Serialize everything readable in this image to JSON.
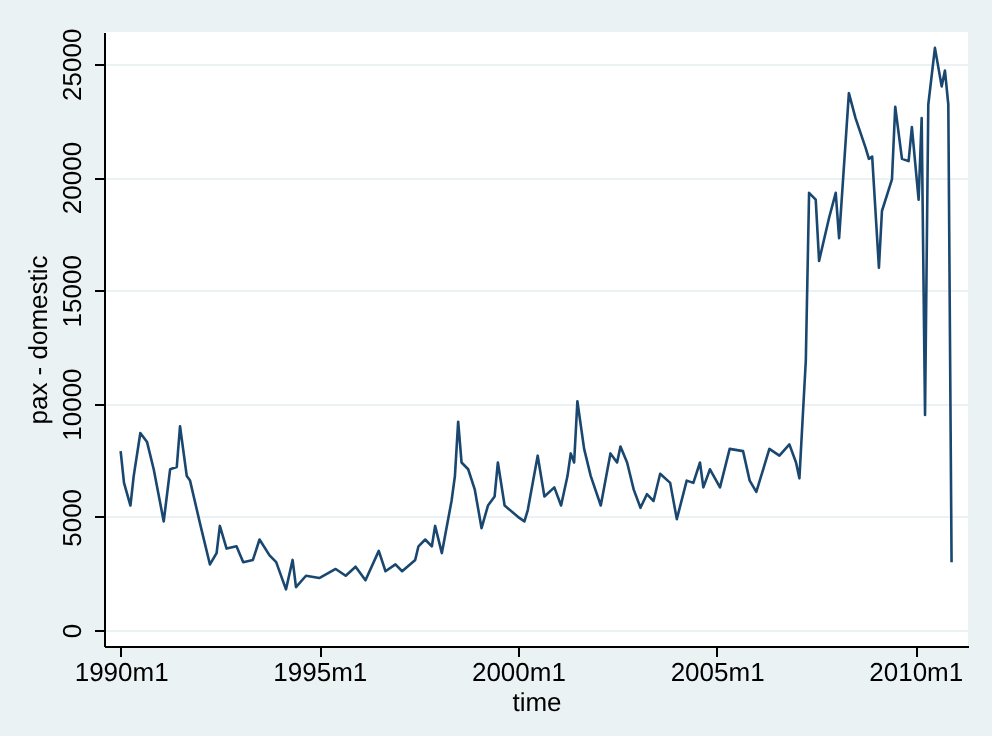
{
  "chart_data": {
    "type": "line",
    "xlabel": "time",
    "ylabel": "pax - domestic",
    "grid": "y",
    "xlim": [
      "1989-08",
      "2011-05"
    ],
    "ylim": [
      -700,
      26400
    ],
    "xticks": [
      {
        "value": "1990-01",
        "label": "1990m1"
      },
      {
        "value": "1995-01",
        "label": "1995m1"
      },
      {
        "value": "2000-01",
        "label": "2000m1"
      },
      {
        "value": "2005-01",
        "label": "2005m1"
      },
      {
        "value": "2010-01",
        "label": "2010m1"
      }
    ],
    "yticks": [
      0,
      5000,
      10000,
      15000,
      20000,
      25000
    ],
    "x": [
      "1990-01",
      "1990-02",
      "1990-04",
      "1990-05",
      "1990-07",
      "1990-09",
      "1990-11",
      "1991-02",
      "1991-04",
      "1991-06",
      "1991-07",
      "1991-09",
      "1991-10",
      "1992-01",
      "1992-04",
      "1992-06",
      "1992-07",
      "1992-09",
      "1992-12",
      "1993-02",
      "1993-05",
      "1993-07",
      "1993-10",
      "1993-12",
      "1994-03",
      "1994-05",
      "1994-06",
      "1994-09",
      "1995-01",
      "1995-06",
      "1995-09",
      "1995-12",
      "1996-03",
      "1996-07",
      "1996-09",
      "1996-12",
      "1997-02",
      "1997-06",
      "1997-07",
      "1997-09",
      "1997-11",
      "1997-12",
      "1998-02",
      "1998-05",
      "1998-06",
      "1998-07",
      "1998-08",
      "1998-10",
      "1998-12",
      "1999-02",
      "1999-04",
      "1999-06",
      "1999-07",
      "1999-09",
      "2000-01",
      "2000-03",
      "2000-04",
      "2000-07",
      "2000-09",
      "2000-12",
      "2001-02",
      "2001-04",
      "2001-05",
      "2001-06",
      "2001-07",
      "2001-09",
      "2001-11",
      "2002-02",
      "2002-05",
      "2002-07",
      "2002-08",
      "2002-10",
      "2002-12",
      "2003-02",
      "2003-04",
      "2003-06",
      "2003-08",
      "2003-11",
      "2004-01",
      "2004-04",
      "2004-06",
      "2004-08",
      "2004-09",
      "2004-11",
      "2005-02",
      "2005-05",
      "2005-09",
      "2005-11",
      "2006-01",
      "2006-05",
      "2006-08",
      "2006-11",
      "2007-01",
      "2007-02",
      "2007-04",
      "2007-05",
      "2007-07",
      "2007-08",
      "2007-11",
      "2008-01",
      "2008-02",
      "2008-05",
      "2008-07",
      "2008-10",
      "2008-11",
      "2008-12",
      "2009-02",
      "2009-03",
      "2009-06",
      "2009-07",
      "2009-09",
      "2009-11",
      "2009-12",
      "2010-02",
      "2010-03",
      "2010-04",
      "2010-05",
      "2010-07",
      "2010-09",
      "2010-10",
      "2010-11",
      "2010-12"
    ],
    "series": [
      {
        "color": "#1a476f",
        "values": [
          7900,
          6500,
          5500,
          6800,
          8700,
          8300,
          7100,
          4800,
          7100,
          7200,
          9000,
          6800,
          6600,
          4700,
          2900,
          3400,
          4600,
          3600,
          3700,
          3000,
          3100,
          4000,
          3300,
          3000,
          1800,
          3100,
          1900,
          2400,
          2300,
          2700,
          2400,
          2800,
          2200,
          3500,
          2600,
          2900,
          2600,
          3100,
          3700,
          4000,
          3700,
          4600,
          3400,
          5700,
          6800,
          9200,
          7400,
          7100,
          6200,
          4500,
          5500,
          5900,
          7400,
          5500,
          5000,
          4800,
          5300,
          7700,
          5900,
          6300,
          5500,
          6800,
          7800,
          7400,
          10100,
          8000,
          6800,
          5500,
          7800,
          7400,
          8100,
          7400,
          6200,
          5400,
          6000,
          5700,
          6900,
          6500,
          4900,
          6600,
          6500,
          7400,
          6300,
          7100,
          6300,
          8000,
          7900,
          6600,
          6100,
          8000,
          7700,
          8200,
          7400,
          6700,
          11900,
          19300,
          19000,
          16300,
          18200,
          19300,
          17300,
          23700,
          22600,
          21300,
          20800,
          20900,
          16000,
          18500,
          19900,
          23100,
          20800,
          20700,
          22200,
          19000,
          22600,
          9500,
          23200,
          25700,
          24000,
          24700,
          23200,
          3000
        ]
      }
    ]
  }
}
